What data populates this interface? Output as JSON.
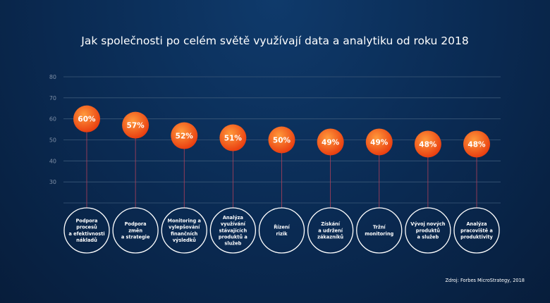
{
  "chart_data": {
    "type": "scatter",
    "title": "Jak společnosti po celém světě využívají data a analytiku od roku 2018",
    "ylim": [
      20,
      80
    ],
    "yticks": [
      30,
      40,
      50,
      60,
      70,
      80
    ],
    "grid": true,
    "categories": [
      [
        "Podpora",
        "procesů",
        "a efektivnosti",
        "nákladů"
      ],
      [
        "Podpora",
        "změn",
        "a strategie"
      ],
      [
        "Monitoring a",
        "vylepšování",
        "finančních",
        "výsledků"
      ],
      [
        "Analýza",
        "využívání",
        "stávajících",
        "produktů a",
        "služeb"
      ],
      [
        "Řízení",
        "rizik"
      ],
      [
        "Získání",
        "a udržení",
        "zákazníků"
      ],
      [
        "Tržní",
        "monitoring"
      ],
      [
        "Vývoj nových",
        "produktů",
        "a služeb"
      ],
      [
        "Analýza",
        "pracoviště a",
        "produktivity"
      ]
    ],
    "values": [
      60,
      57,
      52,
      51,
      50,
      49,
      49,
      48,
      48
    ],
    "labels": [
      "60%",
      "57%",
      "52%",
      "51%",
      "50%",
      "49%",
      "49%",
      "48%",
      "48%"
    ],
    "colors": {
      "bubble_inner": "#ff9a3c",
      "bubble_outer": "#e8380d",
      "grid": "#3b5878",
      "tick": "#7f8fa6",
      "stem": "#b0405a",
      "ring": "#ffffff"
    }
  },
  "source": "Zdroj: Forbes MicroStrategy, 2018"
}
